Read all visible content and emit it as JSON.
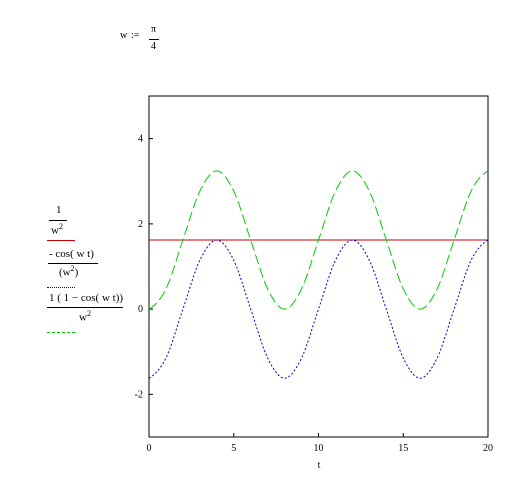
{
  "header": {
    "var": "w",
    "assign": ":=",
    "numerator": "π",
    "denominator": "4"
  },
  "legend": {
    "items": [
      {
        "num": "1",
        "den_base": "w",
        "den_exp": "2",
        "color": "#cc0000",
        "dash": "solid"
      },
      {
        "num": "- cos( w t)",
        "den_open": "(",
        "den_base": "w",
        "den_exp": "2",
        "den_close": ")",
        "color": "#0000cc",
        "dash": "dotted"
      },
      {
        "num": "1 ( 1 − cos( w t))",
        "den_base": "w",
        "den_exp": "2",
        "color": "#00cc00",
        "dash": "dashed"
      }
    ]
  },
  "chart_data": {
    "type": "line",
    "xlabel": "t",
    "xlim": [
      0,
      20
    ],
    "ylim": [
      -3,
      5
    ],
    "xticks": [
      0,
      5,
      10,
      15,
      20
    ],
    "yticks": [
      -2,
      0,
      2,
      4
    ],
    "grid": false,
    "series": [
      {
        "color": "#cc0000",
        "style": "solid",
        "x": [
          0,
          20
        ],
        "y": [
          1.621,
          1.621
        ]
      },
      {
        "color": "#0000cc",
        "style": "dotted",
        "x": [
          0,
          1,
          2,
          3,
          4,
          5,
          6,
          7,
          8,
          9,
          10,
          11,
          12,
          13,
          14,
          15,
          16,
          17,
          18,
          19,
          20
        ],
        "y": [
          -1.621,
          -1.146,
          0,
          1.146,
          1.621,
          1.146,
          0,
          -1.146,
          -1.621,
          -1.146,
          0,
          1.146,
          1.621,
          1.146,
          0,
          -1.146,
          -1.621,
          -1.146,
          0,
          1.146,
          1.621
        ]
      },
      {
        "color": "#00cc00",
        "style": "dashed",
        "x": [
          0,
          1,
          2,
          3,
          4,
          5,
          6,
          7,
          8,
          9,
          10,
          11,
          12,
          13,
          14,
          15,
          16,
          17,
          18,
          19,
          20
        ],
        "y": [
          0,
          0.475,
          1.621,
          2.767,
          3.242,
          2.767,
          1.621,
          0.475,
          0,
          0.475,
          1.621,
          2.767,
          3.242,
          2.767,
          1.621,
          0.475,
          0,
          0.475,
          1.621,
          2.767,
          3.242
        ]
      }
    ]
  }
}
